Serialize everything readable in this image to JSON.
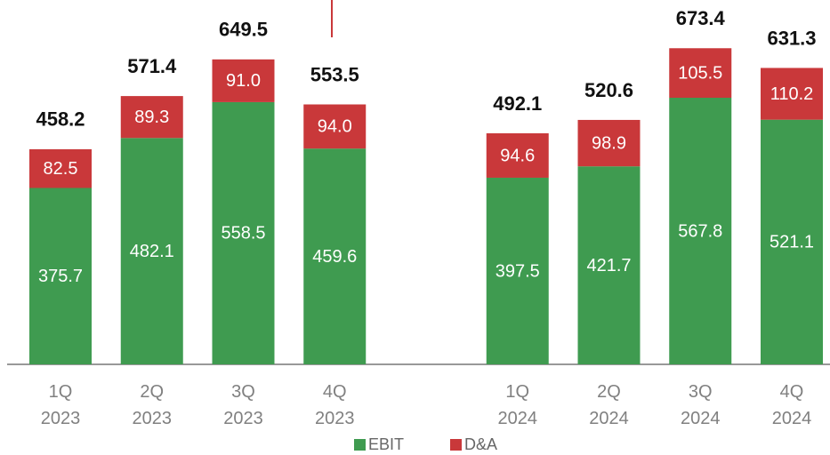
{
  "chart_data": {
    "type": "stacked_bar",
    "categories": [
      "1Q\n2023",
      "2Q\n2023",
      "3Q\n2023",
      "4Q\n2023",
      null,
      "1Q\n2024",
      "2Q\n2024",
      "3Q\n2024",
      "4Q\n2024"
    ],
    "series": [
      {
        "name": "EBIT",
        "color": "#3f9b50",
        "values": [
          375.7,
          482.1,
          558.5,
          459.6,
          null,
          397.5,
          421.7,
          567.8,
          521.1
        ]
      },
      {
        "name": "D&A",
        "color": "#c9383a",
        "values": [
          82.5,
          89.3,
          91.0,
          94.0,
          null,
          94.6,
          98.9,
          105.5,
          110.2
        ],
        "value_labels": [
          "82.5",
          "89.3",
          "91.0",
          "94.0",
          null,
          "94.6",
          "98.9",
          "105.5",
          "110.2"
        ]
      }
    ],
    "totals": [
      458.2,
      571.4,
      649.5,
      553.5,
      null,
      492.1,
      520.6,
      673.4,
      631.3
    ],
    "ylim": [
      0,
      776
    ]
  }
}
